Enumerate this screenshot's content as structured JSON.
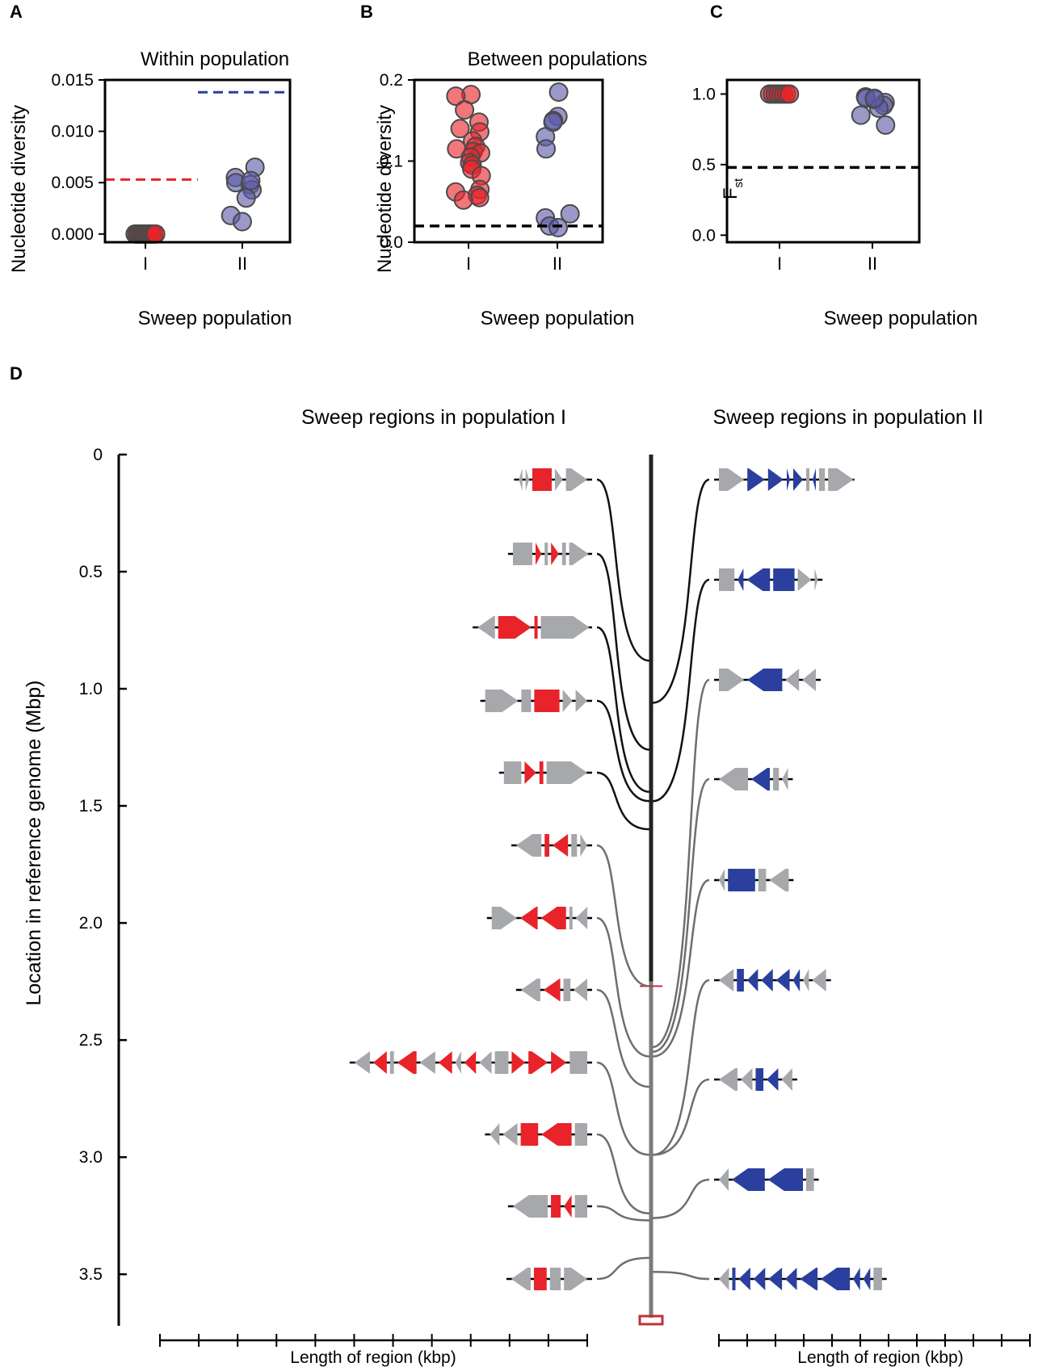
{
  "panels": {
    "A": {
      "letter": "A"
    },
    "B": {
      "letter": "B"
    },
    "C": {
      "letter": "C"
    },
    "D": {
      "letter": "D"
    }
  },
  "colors": {
    "pop1": "#e8232a",
    "pop2": "#2a3f9e",
    "pop2_dot": "#5c5aa8",
    "gray_gene": "#a6a8ab",
    "ref_line_top": "#222222",
    "ref_line_bottom": "#7b7b7b",
    "link_top": "#111111",
    "link_bottom": "#6e6e6e"
  },
  "chart_data": [
    {
      "panel": "A",
      "type": "scatter",
      "title": "Within population",
      "xlabel": "Sweep population",
      "ylabel": "Nucleotide diversity",
      "categories": [
        "I",
        "II"
      ],
      "ylim": [
        -0.0008,
        0.015
      ],
      "yticks": [
        "0.000",
        "0.005",
        "0.010",
        "0.015"
      ],
      "ytick_values": [
        0.0,
        0.005,
        0.01,
        0.015
      ],
      "series": [
        {
          "category": "I",
          "values": [
            0.0,
            0.0,
            0.0,
            0.0,
            0.0,
            0.0,
            0.0,
            0.0,
            0.0,
            0.0,
            0.0,
            0.0
          ]
        },
        {
          "category": "II",
          "values": [
            0.0065,
            0.0055,
            0.005,
            0.0048,
            0.0043,
            0.0035,
            0.0018,
            0.0012,
            0.0052
          ]
        }
      ],
      "reference_lines": [
        {
          "category": "I",
          "value": 0.0053
        },
        {
          "category": "II",
          "value": 0.0138
        }
      ]
    },
    {
      "panel": "B",
      "type": "scatter",
      "title": "Between populations",
      "xlabel": "Sweep population",
      "ylabel": "Nucleotide diversity",
      "categories": [
        "I",
        "II"
      ],
      "ylim": [
        0.0,
        0.2
      ],
      "yticks": [
        "0.0",
        "0.1",
        "0.2"
      ],
      "ytick_values": [
        0.0,
        0.1,
        0.2
      ],
      "series": [
        {
          "category": "I",
          "values": [
            0.182,
            0.18,
            0.163,
            0.148,
            0.14,
            0.136,
            0.125,
            0.118,
            0.115,
            0.112,
            0.11,
            0.105,
            0.098,
            0.095,
            0.09,
            0.082,
            0.065,
            0.062,
            0.058,
            0.055,
            0.052
          ]
        },
        {
          "category": "II",
          "values": [
            0.185,
            0.155,
            0.15,
            0.148,
            0.13,
            0.115,
            0.035,
            0.03,
            0.02,
            0.018
          ]
        }
      ],
      "reference_lines": [
        {
          "value": 0.02
        }
      ]
    },
    {
      "panel": "C",
      "type": "scatter",
      "title": "",
      "xlabel": "Sweep population",
      "ylabel": "F",
      "ylabel_sub": "st",
      "categories": [
        "I",
        "II"
      ],
      "ylim": [
        -0.05,
        1.1
      ],
      "yticks": [
        "0.0",
        "0.5",
        "1.0"
      ],
      "ytick_values": [
        0.0,
        0.5,
        1.0
      ],
      "series": [
        {
          "category": "I",
          "values": [
            1.0,
            1.0,
            1.0,
            1.0,
            1.0,
            1.0,
            1.0,
            1.0
          ]
        },
        {
          "category": "II",
          "values": [
            0.98,
            0.97,
            0.96,
            0.94,
            0.92,
            0.9,
            0.85,
            0.78,
            0.97
          ]
        }
      ],
      "reference_lines": [
        {
          "value": 0.48
        }
      ]
    },
    {
      "panel": "D",
      "type": "diagram",
      "title_left": "Sweep regions in population I",
      "title_right": "Sweep regions in population II",
      "ylabel": "Location in reference genome (Mbp)",
      "xlabel_left": "Length of region (kbp)",
      "xlabel_right": "Length of region (kbp)",
      "ylim": [
        0.0,
        3.72
      ],
      "yticks": [
        "0",
        "0.5",
        "1.0",
        "1.5",
        "2.0",
        "2.5",
        "3.0",
        "3.5"
      ],
      "ytick_values": [
        0.0,
        0.5,
        1.0,
        1.5,
        2.0,
        2.5,
        3.0,
        3.5
      ],
      "pop1_region_locations_mbp": [
        0.88,
        1.26,
        1.44,
        1.48,
        1.6,
        2.27,
        2.57,
        2.7,
        2.99,
        3.24,
        3.27,
        3.43
      ],
      "pop2_region_locations_mbp": [
        1.06,
        1.48,
        2.53,
        2.55,
        2.57,
        2.99,
        2.99,
        3.26,
        3.49
      ],
      "pop1_regions": [
        {
          "genes": [
            [
              "g",
              "<",
              0.9
            ],
            [
              "g",
              ">",
              0.9
            ],
            [
              "r",
              "b",
              5.0
            ],
            [
              "g",
              ">",
              2.0
            ],
            [
              "g",
              ">",
              5.5
            ]
          ]
        },
        {
          "genes": [
            [
              "g",
              "b",
              5.0
            ],
            [
              "r",
              ">",
              1.5
            ],
            [
              "g",
              "b",
              0.5
            ],
            [
              "r",
              ">",
              2.0
            ],
            [
              "g",
              "b",
              1.0
            ],
            [
              "g",
              ">",
              5.0
            ]
          ]
        },
        {
          "genes": [
            [
              "g",
              "<",
              4.5
            ],
            [
              "r",
              ">",
              8.5
            ],
            [
              "r",
              "b",
              0.3
            ],
            [
              "g",
              ">",
              12.5
            ]
          ]
        },
        {
          "genes": [
            [
              "g",
              ">",
              8.5
            ],
            [
              "g",
              "b",
              2.5
            ],
            [
              "r",
              "b",
              6.5
            ],
            [
              "g",
              ">",
              2.5
            ],
            [
              "g",
              ">",
              3.0
            ]
          ]
        },
        {
          "genes": [
            [
              "g",
              "b",
              4.5
            ],
            [
              "r",
              ">",
              3.0
            ],
            [
              "r",
              "b",
              1.0
            ],
            [
              "g",
              ">",
              10.5
            ]
          ]
        },
        {
          "genes": [
            [
              "g",
              "<",
              6.5
            ],
            [
              "r",
              "b",
              1.2
            ],
            [
              "r",
              "<",
              4.0
            ],
            [
              "g",
              "b",
              1.5
            ],
            [
              "g",
              ">",
              1.8
            ]
          ]
        },
        {
          "genes": [
            [
              "g",
              ">",
              6.5
            ],
            [
              "r",
              "<",
              4.5
            ],
            [
              "r",
              "<",
              6.5
            ],
            [
              "g",
              "b",
              0.8
            ],
            [
              "g",
              "<",
              3.0
            ]
          ]
        },
        {
          "genes": [
            [
              "g",
              "<",
              5.0
            ],
            [
              "r",
              "<",
              4.3
            ],
            [
              "g",
              "b",
              1.8
            ],
            [
              "g",
              "<",
              3.5
            ]
          ]
        },
        {
          "genes": [
            [
              "g",
              "<",
              4.0
            ],
            [
              "r",
              "<",
              3.5
            ],
            [
              "g",
              "b",
              1.0
            ],
            [
              "r",
              "<",
              5.0
            ],
            [
              "g",
              "<",
              4.0
            ],
            [
              "r",
              "<",
              3.5
            ],
            [
              "g",
              "<",
              1.5
            ],
            [
              "r",
              "<",
              3.0
            ],
            [
              "g",
              "<",
              3.2
            ],
            [
              "g",
              "b",
              3.5
            ],
            [
              "r",
              ">",
              3.5
            ],
            [
              "r",
              ">",
              5.0
            ],
            [
              "r",
              ">",
              4.0
            ],
            [
              "g",
              "b",
              4.5
            ]
          ]
        },
        {
          "genes": [
            [
              "g",
              "<",
              2.5
            ],
            [
              "g",
              "<",
              3.8
            ],
            [
              "r",
              "b",
              4.5
            ],
            [
              "r",
              "<",
              7.8
            ],
            [
              "g",
              "b",
              3.2
            ]
          ]
        },
        {
          "genes": [
            [
              "g",
              "<",
              9.0
            ],
            [
              "r",
              "b",
              2.5
            ],
            [
              "r",
              "<",
              2.0
            ],
            [
              "g",
              "b",
              3.2
            ]
          ]
        },
        {
          "genes": [
            [
              "g",
              "<",
              5.0
            ],
            [
              "r",
              "b",
              3.3
            ],
            [
              "g",
              "b",
              2.8
            ],
            [
              "g",
              ">",
              6.0
            ]
          ]
        }
      ],
      "pop2_regions": [
        {
          "genes": [
            [
              "g",
              ">",
              6.5
            ],
            [
              "b",
              ">",
              4.5
            ],
            [
              "b",
              ">",
              4.0
            ],
            [
              "b",
              ">",
              0.5
            ],
            [
              "b",
              ">",
              2.5
            ],
            [
              "g",
              "b",
              0.5
            ],
            [
              "b",
              "<",
              0.5
            ],
            [
              "g",
              "b",
              1.5
            ],
            [
              "g",
              ">",
              6.5
            ]
          ]
        },
        {
          "genes": [
            [
              "g",
              "b",
              4.0
            ],
            [
              "b",
              "<",
              1.5
            ],
            [
              "b",
              "<",
              6.0
            ],
            [
              "b",
              "b",
              5.5
            ],
            [
              "g",
              ">",
              3.5
            ],
            [
              "g",
              ">",
              0.8
            ]
          ]
        },
        {
          "genes": [
            [
              "g",
              ">",
              6.5
            ],
            [
              "b",
              "<",
              9.0
            ],
            [
              "g",
              "<",
              3.5
            ],
            [
              "g",
              "<",
              3.5
            ]
          ]
        },
        {
          "genes": [
            [
              "g",
              "<",
              7.5
            ],
            [
              "b",
              "<",
              4.8
            ],
            [
              "g",
              "b",
              1.5
            ],
            [
              "g",
              "<",
              1.5
            ]
          ]
        },
        {
          "genes": [
            [
              "g",
              "<",
              1.5
            ],
            [
              "b",
              "b",
              7.0
            ],
            [
              "g",
              "b",
              2.0
            ],
            [
              "g",
              "<",
              5.0
            ]
          ]
        },
        {
          "genes": [
            [
              "g",
              "<",
              3.8
            ],
            [
              "b",
              "b",
              1.8
            ],
            [
              "b",
              "<",
              2.8
            ],
            [
              "b",
              "<",
              3.0
            ],
            [
              "b",
              "<",
              3.5
            ],
            [
              "b",
              "<",
              1.8
            ],
            [
              "g",
              "<",
              1.5
            ],
            [
              "g",
              "<",
              3.6
            ]
          ]
        },
        {
          "genes": [
            [
              "g",
              "<",
              4.8
            ],
            [
              "g",
              "<",
              3.0
            ],
            [
              "b",
              "b",
              2.0
            ],
            [
              "b",
              "<",
              3.0
            ],
            [
              "g",
              "<",
              2.8
            ]
          ]
        },
        {
          "genes": [
            [
              "g",
              "<",
              2.5
            ],
            [
              "b",
              "<",
              8.5
            ],
            [
              "b",
              "<",
              9.0
            ],
            [
              "g",
              "b",
              2.0
            ]
          ]
        },
        {
          "genes": [
            [
              "g",
              "<",
              2.6
            ],
            [
              "b",
              "b",
              0.8
            ],
            [
              "b",
              "<",
              3.0
            ],
            [
              "b",
              "<",
              3.0
            ],
            [
              "b",
              "<",
              3.5
            ],
            [
              "b",
              "<",
              3.0
            ],
            [
              "b",
              "<",
              4.5
            ],
            [
              "b",
              "<",
              7.5
            ],
            [
              "b",
              "<",
              1.8
            ],
            [
              "b",
              "<",
              1.8
            ],
            [
              "g",
              "b",
              2.2
            ]
          ]
        }
      ],
      "scale_ticks_per_side": 12
    }
  ]
}
